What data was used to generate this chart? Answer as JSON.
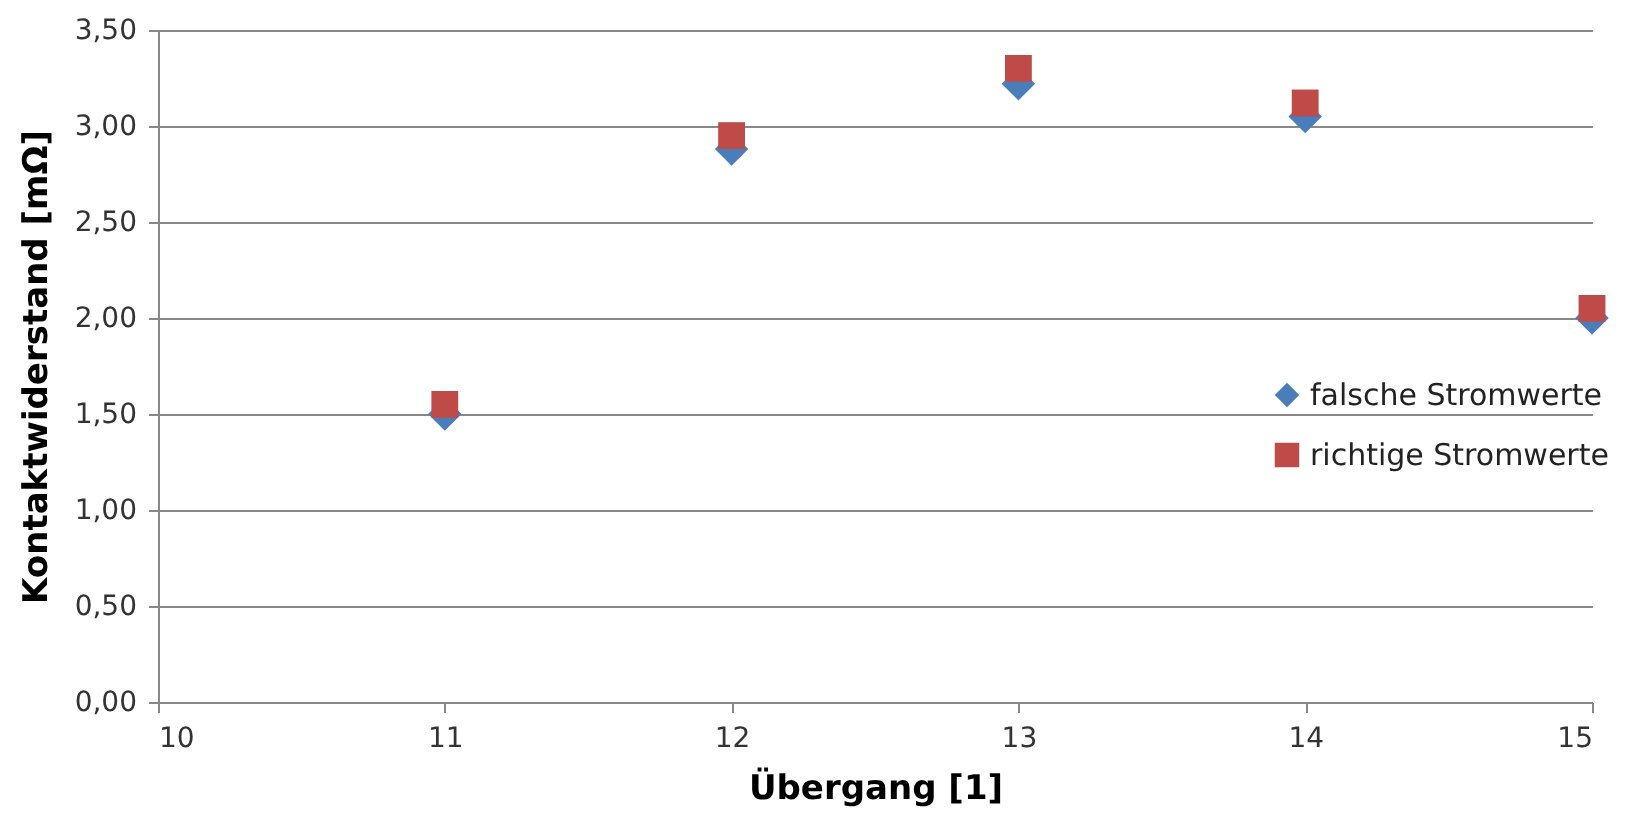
{
  "chart_data": {
    "type": "scatter",
    "xlabel": "Übergang [1]",
    "ylabel": "Kontaktwiderstand [mΩ]",
    "x": [
      11,
      12,
      13,
      14,
      15
    ],
    "series": [
      {
        "name": "falsche Stromwerte",
        "color": "#4a7ebb",
        "marker": "diamond",
        "values": [
          1.5,
          2.88,
          3.22,
          3.05,
          2.0
        ]
      },
      {
        "name": "richtige Stromwerte",
        "color": "#be4b48",
        "marker": "square",
        "values": [
          1.55,
          2.95,
          3.3,
          3.12,
          2.05
        ]
      }
    ],
    "xlim": [
      10,
      15
    ],
    "xticks": [
      10,
      11,
      12,
      13,
      14,
      15
    ],
    "ylim": [
      0,
      3.5
    ],
    "yticks": [
      {
        "value": 0,
        "label": "0,00"
      },
      {
        "value": 0.5,
        "label": "0,50"
      },
      {
        "value": 1,
        "label": "1,00"
      },
      {
        "value": 1.5,
        "label": "1,50"
      },
      {
        "value": 2,
        "label": "2,00"
      },
      {
        "value": 2.5,
        "label": "2,50"
      },
      {
        "value": 3,
        "label": "3,00"
      },
      {
        "value": 3.5,
        "label": "3,50"
      }
    ],
    "grid": "y",
    "legend": "right"
  }
}
